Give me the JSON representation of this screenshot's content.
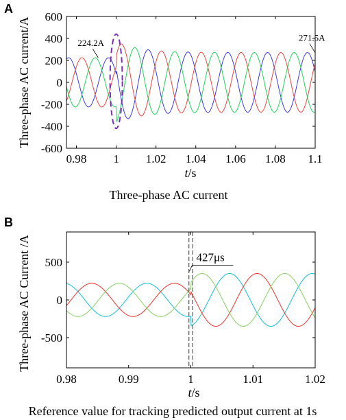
{
  "chart_data": [
    {
      "type": "line",
      "panel_letter": "A",
      "caption": "Three-phase AC current",
      "xlabel_italic": "t",
      "xlabel_unit": "/s",
      "ylabel": "Three-phase AC current/A",
      "xlim": [
        0.975,
        1.1
      ],
      "ylim": [
        -600,
        600
      ],
      "xticks": [
        "0.98",
        "1",
        "1.02",
        "1.04",
        "1.06",
        "1.08",
        "1.1"
      ],
      "xtick_values": [
        0.98,
        1.0,
        1.02,
        1.04,
        1.06,
        1.08,
        1.1
      ],
      "yticks": [
        "600",
        "400",
        "200",
        "0",
        "-200",
        "-400",
        "-600"
      ],
      "ytick_values": [
        600,
        400,
        200,
        0,
        -200,
        -400,
        -600
      ],
      "grid": false,
      "frequency_hz": 50,
      "amplitude_before": 224.2,
      "amplitude_after": 271.5,
      "transition_peak": 370,
      "step_time": 1.0,
      "series": [
        {
          "phase_deg": 160,
          "color": "#3a3adf"
        },
        {
          "phase_deg": 40,
          "color": "#e8453c"
        },
        {
          "phase_deg": -80,
          "color": "#1fd35a"
        }
      ],
      "annotations": [
        {
          "text": "224.2A",
          "x": 0.982,
          "y": 224.2
        },
        {
          "text": "271.5A",
          "x": 1.091,
          "y": 271.5
        }
      ],
      "highlight": {
        "shape": "dashed-ellipse",
        "x": 1.0,
        "y_range": [
          -420,
          440
        ],
        "color": "#7b2fb5"
      }
    },
    {
      "type": "line",
      "panel_letter": "B",
      "caption": "Reference value for tracking predicted output current at 1s",
      "xlabel_italic": "t",
      "xlabel_unit": "/s",
      "ylabel": "Three-phase AC Current /A",
      "xlim": [
        0.98,
        1.02
      ],
      "ylim": [
        -900,
        900
      ],
      "xticks": [
        "0.98",
        "0.99",
        "1",
        "1.01",
        "1.02"
      ],
      "xtick_values": [
        0.98,
        0.99,
        1.0,
        1.01,
        1.02
      ],
      "yticks": [
        "500",
        "0",
        "-500"
      ],
      "ytick_values": [
        500,
        0,
        -500
      ],
      "grid": false,
      "period_s": 0.0133,
      "amplitude_before": 220,
      "amplitude_after": 350,
      "step_time": 1.0,
      "series": [
        {
          "phase_deg": 100,
          "color": "#23c2d8"
        },
        {
          "phase_deg": -20,
          "color": "#e8453c"
        },
        {
          "phase_deg": -140,
          "color": "#8fd46e"
        }
      ],
      "annotation": {
        "text": "427μs",
        "x": 1.0,
        "y": 560
      },
      "dashed_lines_x": [
        0.9997,
        1.0003
      ]
    }
  ]
}
